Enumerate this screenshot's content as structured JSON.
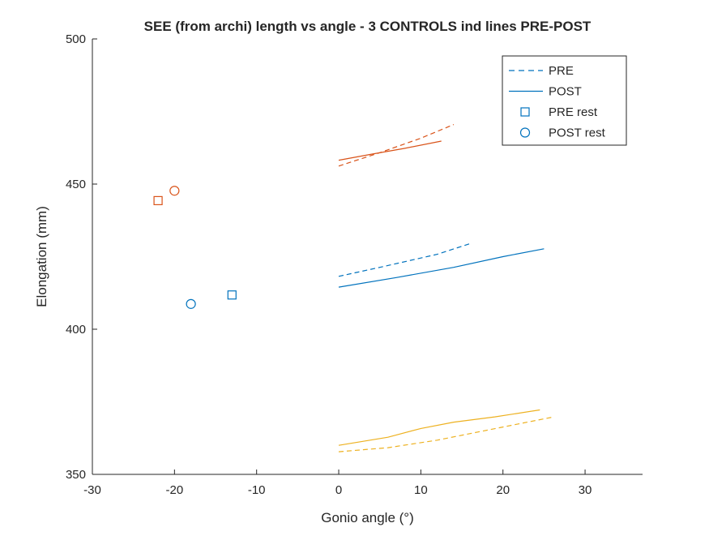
{
  "chart_data": {
    "type": "line",
    "title": "SEE (from archi) length vs angle - 3 CONTROLS ind lines PRE-POST",
    "xlabel": "Gonio angle (°)",
    "ylabel": "Elongation (mm)",
    "xlim": [
      -30,
      37
    ],
    "ylim": [
      350,
      500
    ],
    "xticks": [
      -30,
      -20,
      -10,
      0,
      10,
      20,
      30
    ],
    "yticks": [
      350,
      400,
      450,
      500
    ],
    "xtick_labels": [
      "-30",
      "-20",
      "-10",
      "0",
      "10",
      "20",
      "30"
    ],
    "ytick_labels": [
      "350",
      "400",
      "450",
      "500"
    ],
    "grid": false,
    "legend_position": "top-right",
    "legend": [
      {
        "label": "PRE",
        "style": "dashed"
      },
      {
        "label": "POST",
        "style": "solid"
      },
      {
        "label": "PRE rest",
        "style": "square"
      },
      {
        "label": "POST rest",
        "style": "circle"
      }
    ],
    "legend_color": "#0072BD",
    "series": [
      {
        "color": "#D95319",
        "style": "dashed",
        "x": [
          0,
          5,
          10,
          14
        ],
        "y": [
          456.2,
          460.8,
          465.8,
          470.5
        ]
      },
      {
        "color": "#D95319",
        "style": "solid",
        "x": [
          0,
          4,
          8,
          12.5
        ],
        "y": [
          458.2,
          460.3,
          462.3,
          464.8
        ]
      },
      {
        "color": "#0072BD",
        "style": "dashed",
        "x": [
          0,
          5,
          12,
          16
        ],
        "y": [
          418.2,
          421.3,
          425.8,
          429.5
        ]
      },
      {
        "color": "#0072BD",
        "style": "solid",
        "x": [
          0,
          7,
          14,
          20,
          25
        ],
        "y": [
          414.5,
          417.8,
          421.3,
          425.0,
          427.7
        ]
      },
      {
        "color": "#EDB120",
        "style": "dashed",
        "x": [
          0,
          6,
          12,
          20,
          26
        ],
        "y": [
          357.8,
          359.2,
          361.8,
          366.3,
          369.7
        ]
      },
      {
        "color": "#EDB120",
        "style": "solid",
        "x": [
          0,
          6,
          10,
          14,
          19,
          24.5
        ],
        "y": [
          360.0,
          362.8,
          365.8,
          368.0,
          369.8,
          372.2
        ]
      }
    ],
    "rest_points": [
      {
        "color": "#D95319",
        "marker": "square",
        "x": -22,
        "y": 444.3
      },
      {
        "color": "#D95319",
        "marker": "circle",
        "x": -20,
        "y": 447.7
      },
      {
        "color": "#0072BD",
        "marker": "square",
        "x": -13,
        "y": 411.8
      },
      {
        "color": "#0072BD",
        "marker": "circle",
        "x": -18,
        "y": 408.7
      }
    ]
  }
}
